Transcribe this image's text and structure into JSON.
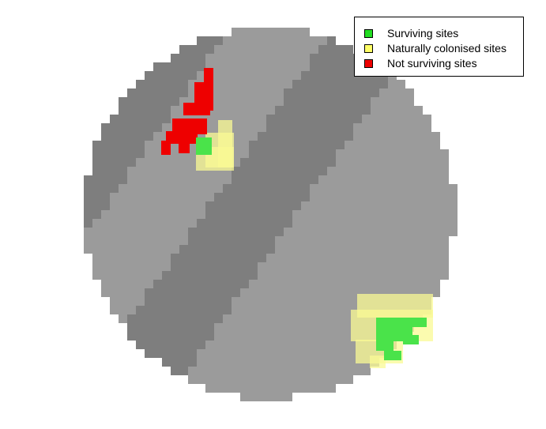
{
  "colors": {
    "background": "#ffffff",
    "terrain_light": "#9b9b9b",
    "terrain_dark": "#7e7e7e",
    "surviving": "#4ae34a",
    "colonised": "#fafa94",
    "not_surviving": "#ee0000"
  },
  "legend": {
    "items": [
      {
        "label": "Surviving sites",
        "color": "#22dd22"
      },
      {
        "label": "Naturally colonised sites",
        "color": "#ffff66"
      },
      {
        "label": "Not surviving sites",
        "color": "#ee0000"
      }
    ]
  }
}
